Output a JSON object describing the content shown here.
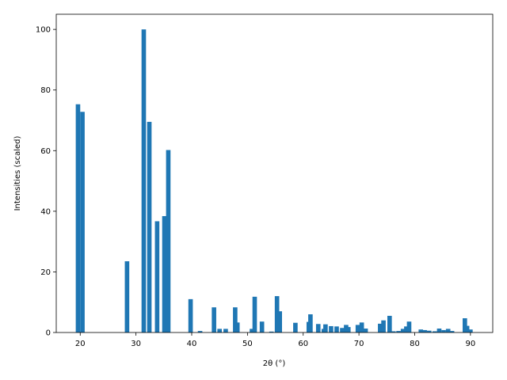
{
  "chart_data": {
    "type": "bar",
    "xlabel": "2θ (°)",
    "ylabel": "Intensities (scaled)",
    "color": "#1f77b4",
    "x": [
      19.6,
      20.4,
      28.4,
      31.4,
      32.4,
      33.8,
      35.1,
      35.8,
      39.8,
      41.5,
      44.0,
      45.0,
      46.1,
      47.8,
      48.2,
      50.8,
      51.3,
      52.6,
      54.3,
      55.3,
      55.8,
      58.6,
      61.0,
      61.3,
      62.7,
      63.7,
      64.0,
      65.0,
      66.0,
      67.0,
      67.7,
      68.1,
      69.8,
      70.5,
      71.2,
      73.8,
      74.4,
      75.5,
      76.2,
      77.1,
      77.9,
      78.5,
      79.0,
      81.1,
      81.8,
      82.6,
      83.6,
      84.4,
      85.2,
      86.0,
      86.7,
      89.0,
      89.4,
      90.0
    ],
    "values": [
      75.3,
      72.8,
      23.5,
      100,
      69.5,
      36.7,
      38.4,
      60.2,
      11,
      0.5,
      8.3,
      1.2,
      1.2,
      8.3,
      3.3,
      1.2,
      11.8,
      3.6,
      0.3,
      12,
      7,
      3.2,
      3.5,
      6,
      2.8,
      1.2,
      2.7,
      2.1,
      2,
      1.5,
      2.5,
      1.8,
      2.5,
      3.3,
      1.3,
      2.9,
      4,
      5.5,
      0.4,
      0.5,
      1.2,
      2,
      3.6,
      1,
      0.8,
      0.6,
      0.4,
      1.3,
      0.8,
      1.2,
      0.5,
      4.7,
      2.2,
      1
    ],
    "xlim": [
      15.7,
      94
    ],
    "ylim": [
      0,
      105
    ],
    "xticks": [
      20,
      30,
      40,
      50,
      60,
      70,
      80,
      90
    ],
    "yticks": [
      0,
      20,
      40,
      60,
      80,
      100
    ]
  }
}
